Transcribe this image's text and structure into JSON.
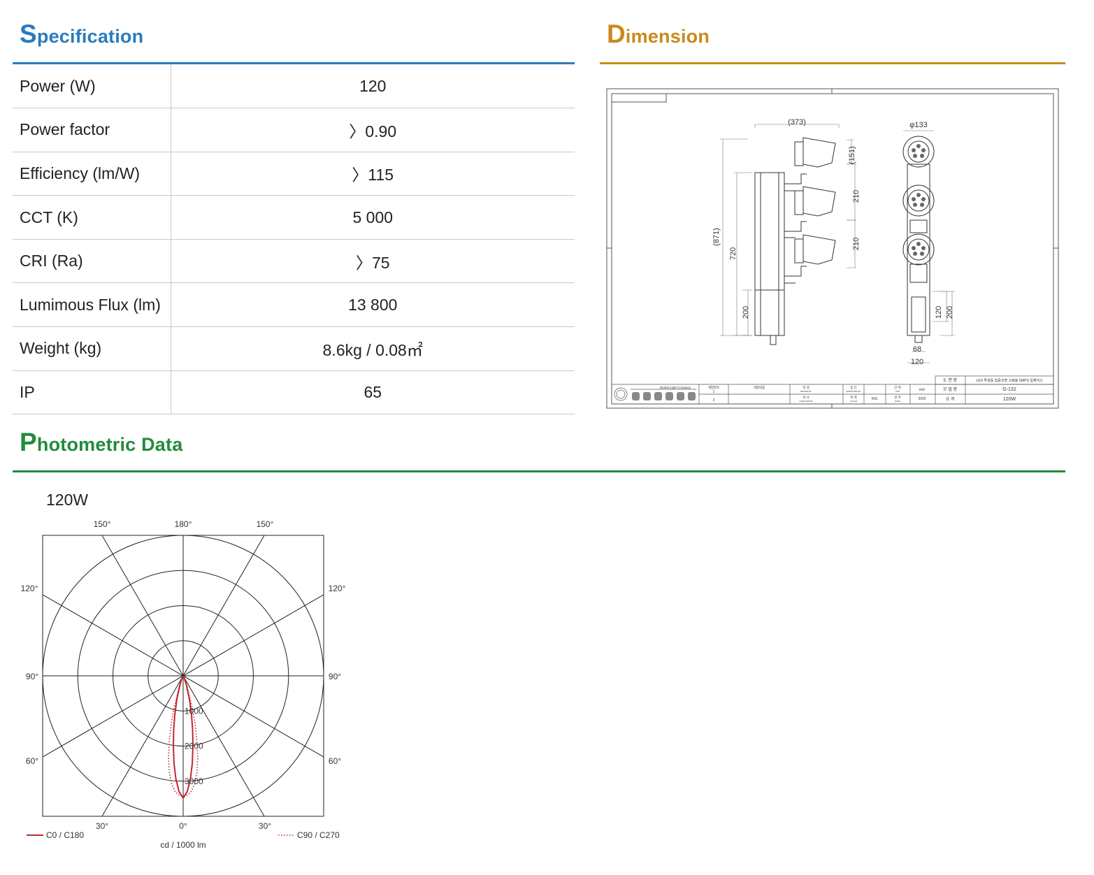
{
  "specification": {
    "title_cap": "S",
    "title_rest": "pecification",
    "rows": [
      {
        "label": "Power (W)",
        "value": "120"
      },
      {
        "label": "Power factor",
        "value": "〉0.90"
      },
      {
        "label": "Efficiency (lm/W)",
        "value": "〉115"
      },
      {
        "label": "CCT (K)",
        "value": "5 000"
      },
      {
        "label": "CRI (Ra)",
        "value": "〉75"
      },
      {
        "label": "Lumimous Flux (lm)",
        "value": "13 800"
      },
      {
        "label": "Weight (kg)",
        "value": "8.6kg / 0.08㎡"
      },
      {
        "label": "IP",
        "value": "65"
      }
    ]
  },
  "dimension": {
    "title_cap": "D",
    "title_rest": "imension",
    "labels": {
      "width_total": "(373)",
      "diameter": "φ133",
      "head_height": "(151)",
      "spacing_1": "210",
      "spacing_2": "210",
      "total_height": "(871)",
      "body_height": "720",
      "base_height": "200",
      "box_height_a": "120",
      "box_height_b": "200",
      "box_width_a": "68",
      "box_width_b": "120"
    },
    "title_block": {
      "company": "Global Light Company",
      "drawing_name_label": "도 면 명",
      "drawing_name": "LED 투광등 집중조명 고효율 SMPS 일체식스",
      "model_label": "모 델 명",
      "model": "G-132",
      "spec_label": "규 격",
      "spec": "120W",
      "rev_no": "개정번호",
      "rev_content": "개정내용",
      "drawn_ko": "작 성",
      "drawn_en": "DRAWN BY",
      "approved_ko": "승 인",
      "approved_en": "APPROVED BY",
      "checked_ko": "검 사",
      "checked_en": "CHECKED BY",
      "scale_ko": "축 척",
      "scale_en": "SCALE",
      "scale": "NIS",
      "unit_ko": "단 위",
      "unit_en": "UNIT",
      "unit": "mm",
      "date_ko": "일 자",
      "date_en": "DATE",
      "date": "2020",
      "rev1": "1",
      "rev2": "2"
    }
  },
  "photometric": {
    "title_cap": "P",
    "title_rest": "hotometric Data",
    "chart_data": {
      "type": "polar",
      "title": "120W",
      "angle_labels": {
        "top": [
          "150°",
          "180°",
          "150°"
        ],
        "left": [
          "120°",
          "90°",
          "60°"
        ],
        "right": [
          "120°",
          "90°",
          "60°"
        ],
        "bottom": [
          "30°",
          "0°",
          "30°"
        ]
      },
      "radial_ticks": [
        1000,
        2000,
        3000
      ],
      "radial_max": 4000,
      "unit_label": "cd / 1000 lm",
      "series": [
        {
          "name": "C0 / C180",
          "color": "#c0282d",
          "style": "solid",
          "points": [
            [
              -90,
              0
            ],
            [
              -45,
              0
            ],
            [
              -30,
              0
            ],
            [
              -25,
              80
            ],
            [
              -20,
              250
            ],
            [
              -15,
              700
            ],
            [
              -12,
              1150
            ],
            [
              -10,
              1550
            ],
            [
              -8,
              2000
            ],
            [
              -6,
              2500
            ],
            [
              -4,
              2950
            ],
            [
              -2,
              3300
            ],
            [
              0,
              3480
            ],
            [
              2,
              3300
            ],
            [
              4,
              2950
            ],
            [
              6,
              2500
            ],
            [
              8,
              2000
            ],
            [
              10,
              1550
            ],
            [
              12,
              1150
            ],
            [
              15,
              700
            ],
            [
              20,
              250
            ],
            [
              25,
              80
            ],
            [
              30,
              0
            ],
            [
              45,
              0
            ],
            [
              90,
              0
            ]
          ]
        },
        {
          "name": "C90 / C270",
          "color": "#c0282d",
          "style": "dotted",
          "points": [
            [
              -90,
              0
            ],
            [
              -45,
              0
            ],
            [
              -30,
              0
            ],
            [
              -25,
              120
            ],
            [
              -20,
              350
            ],
            [
              -16,
              900
            ],
            [
              -14,
              1400
            ],
            [
              -12,
              1900
            ],
            [
              -10,
              2400
            ],
            [
              -8,
              2800
            ],
            [
              -6,
              3100
            ],
            [
              -4,
              3300
            ],
            [
              -2,
              3400
            ],
            [
              0,
              3420
            ],
            [
              2,
              3400
            ],
            [
              4,
              3300
            ],
            [
              6,
              3100
            ],
            [
              8,
              2800
            ],
            [
              10,
              2400
            ],
            [
              12,
              1900
            ],
            [
              14,
              1400
            ],
            [
              16,
              900
            ],
            [
              20,
              350
            ],
            [
              25,
              120
            ],
            [
              30,
              0
            ],
            [
              45,
              0
            ],
            [
              90,
              0
            ]
          ]
        }
      ]
    }
  }
}
